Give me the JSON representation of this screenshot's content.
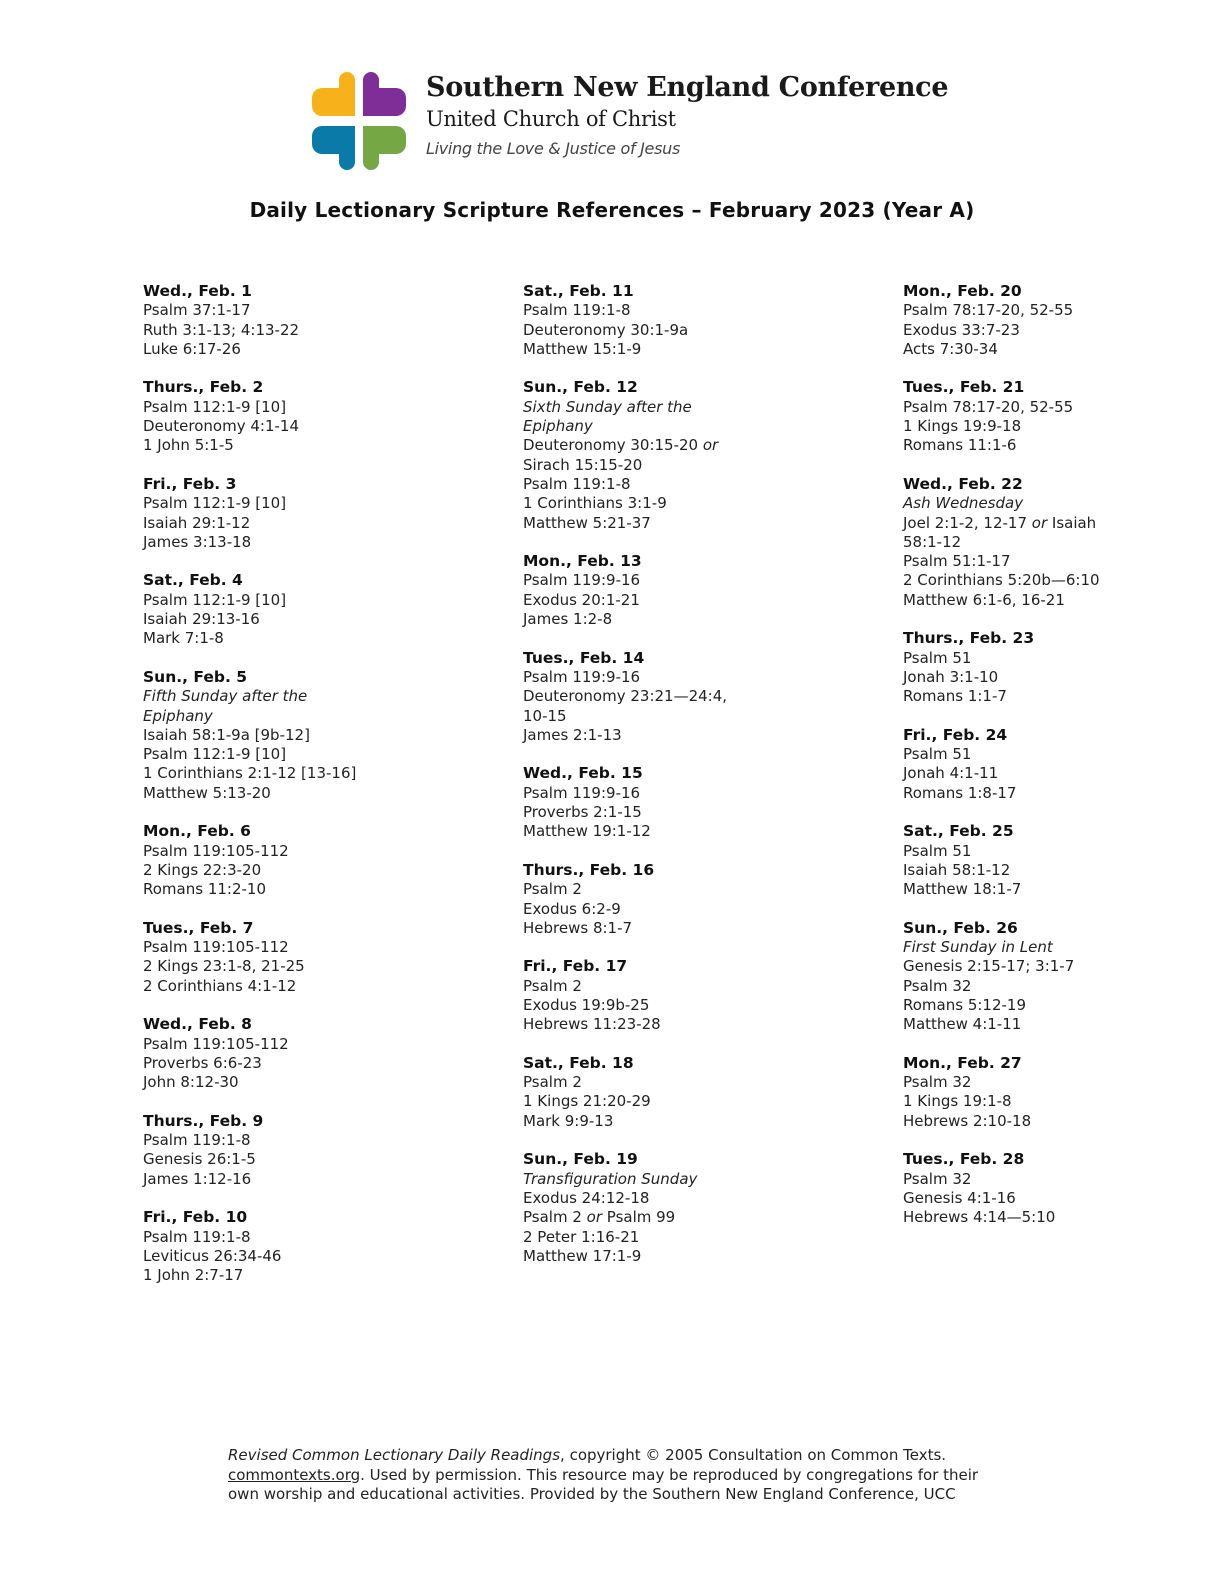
{
  "logo": {
    "colors": {
      "yellow": "#F7B21B",
      "purple": "#7E2E96",
      "blue": "#0A7BA8",
      "green": "#76A745"
    }
  },
  "header": {
    "org_name": "Southern New England Conference",
    "org_sub": "United Church of Christ",
    "tagline": "Living the Love & Justice of Jesus"
  },
  "title": "Daily Lectionary Scripture References – February 2023 (Year A)",
  "columns": [
    {
      "entries": [
        {
          "date": "Wed., Feb. 1",
          "lines": [
            [
              {
                "t": "Psalm 37:1-17"
              }
            ],
            [
              {
                "t": "Ruth 3:1-13; 4:13-22"
              }
            ],
            [
              {
                "t": "Luke 6:17-26"
              }
            ]
          ]
        },
        {
          "date": "Thurs., Feb. 2",
          "lines": [
            [
              {
                "t": "Psalm 112:1-9 [10]"
              }
            ],
            [
              {
                "t": "Deuteronomy 4:1-14"
              }
            ],
            [
              {
                "t": "1 John 5:1-5"
              }
            ]
          ]
        },
        {
          "date": "Fri., Feb. 3",
          "lines": [
            [
              {
                "t": "Psalm 112:1-9 [10]"
              }
            ],
            [
              {
                "t": "Isaiah 29:1-12"
              }
            ],
            [
              {
                "t": "James 3:13-18"
              }
            ]
          ]
        },
        {
          "date": "Sat., Feb. 4",
          "lines": [
            [
              {
                "t": "Psalm 112:1-9 [10]"
              }
            ],
            [
              {
                "t": "Isaiah 29:13-16"
              }
            ],
            [
              {
                "t": "Mark 7:1-8"
              }
            ]
          ]
        },
        {
          "date": "Sun., Feb. 5",
          "lines": [
            [
              {
                "t": "Fifth Sunday after the",
                "i": true
              }
            ],
            [
              {
                "t": "Epiphany",
                "i": true
              }
            ],
            [
              {
                "t": "Isaiah 58:1-9a [9b-12]"
              }
            ],
            [
              {
                "t": "Psalm 112:1-9 [10]"
              }
            ],
            [
              {
                "t": "1 Corinthians 2:1-12 [13-16]"
              }
            ],
            [
              {
                "t": "Matthew 5:13-20"
              }
            ]
          ]
        },
        {
          "date": "Mon., Feb. 6",
          "lines": [
            [
              {
                "t": "Psalm 119:105-112"
              }
            ],
            [
              {
                "t": "2 Kings 22:3-20"
              }
            ],
            [
              {
                "t": "Romans 11:2-10"
              }
            ]
          ]
        },
        {
          "date": "Tues., Feb. 7",
          "lines": [
            [
              {
                "t": "Psalm 119:105-112"
              }
            ],
            [
              {
                "t": "2 Kings 23:1-8, 21-25"
              }
            ],
            [
              {
                "t": "2 Corinthians 4:1-12"
              }
            ]
          ]
        },
        {
          "date": "Wed., Feb. 8",
          "lines": [
            [
              {
                "t": "Psalm 119:105-112"
              }
            ],
            [
              {
                "t": "Proverbs 6:6-23"
              }
            ],
            [
              {
                "t": "John 8:12-30"
              }
            ]
          ]
        },
        {
          "date": "Thurs., Feb. 9",
          "lines": [
            [
              {
                "t": "Psalm 119:1-8"
              }
            ],
            [
              {
                "t": "Genesis 26:1-5"
              }
            ],
            [
              {
                "t": "James 1:12-16"
              }
            ]
          ]
        },
        {
          "date": "Fri., Feb. 10",
          "lines": [
            [
              {
                "t": "Psalm 119:1-8"
              }
            ],
            [
              {
                "t": "Leviticus 26:34-46"
              }
            ],
            [
              {
                "t": "1 John 2:7-17"
              }
            ]
          ]
        }
      ]
    },
    {
      "entries": [
        {
          "date": "Sat., Feb. 11",
          "lines": [
            [
              {
                "t": "Psalm 119:1-8"
              }
            ],
            [
              {
                "t": "Deuteronomy 30:1-9a"
              }
            ],
            [
              {
                "t": "Matthew 15:1-9"
              }
            ]
          ]
        },
        {
          "date": "Sun., Feb. 12",
          "lines": [
            [
              {
                "t": "Sixth Sunday after the",
                "i": true
              }
            ],
            [
              {
                "t": "Epiphany",
                "i": true
              }
            ],
            [
              {
                "t": "Deuteronomy 30:15-20 "
              },
              {
                "t": "or",
                "i": true
              }
            ],
            [
              {
                "t": "Sirach 15:15-20"
              }
            ],
            [
              {
                "t": "Psalm 119:1-8"
              }
            ],
            [
              {
                "t": "1 Corinthians 3:1-9"
              }
            ],
            [
              {
                "t": "Matthew 5:21-37"
              }
            ]
          ]
        },
        {
          "date": "Mon., Feb. 13",
          "lines": [
            [
              {
                "t": "Psalm 119:9-16"
              }
            ],
            [
              {
                "t": "Exodus 20:1-21"
              }
            ],
            [
              {
                "t": "James 1:2-8"
              }
            ]
          ]
        },
        {
          "date": "Tues., Feb. 14",
          "lines": [
            [
              {
                "t": "Psalm 119:9-16"
              }
            ],
            [
              {
                "t": "Deuteronomy 23:21—24:4,"
              }
            ],
            [
              {
                "t": "10-15"
              }
            ],
            [
              {
                "t": "James 2:1-13"
              }
            ]
          ]
        },
        {
          "date": "Wed., Feb. 15",
          "lines": [
            [
              {
                "t": "Psalm 119:9-16"
              }
            ],
            [
              {
                "t": "Proverbs 2:1-15"
              }
            ],
            [
              {
                "t": "Matthew 19:1-12"
              }
            ]
          ]
        },
        {
          "date": "Thurs., Feb. 16",
          "lines": [
            [
              {
                "t": "Psalm 2"
              }
            ],
            [
              {
                "t": "Exodus 6:2-9"
              }
            ],
            [
              {
                "t": "Hebrews 8:1-7"
              }
            ]
          ]
        },
        {
          "date": "Fri., Feb. 17",
          "lines": [
            [
              {
                "t": "Psalm 2"
              }
            ],
            [
              {
                "t": "Exodus 19:9b-25"
              }
            ],
            [
              {
                "t": "Hebrews 11:23-28"
              }
            ]
          ]
        },
        {
          "date": "Sat., Feb. 18",
          "lines": [
            [
              {
                "t": "Psalm 2"
              }
            ],
            [
              {
                "t": "1 Kings 21:20-29"
              }
            ],
            [
              {
                "t": "Mark 9:9-13"
              }
            ]
          ]
        },
        {
          "date": "Sun., Feb. 19",
          "lines": [
            [
              {
                "t": "Transfiguration Sunday",
                "i": true
              }
            ],
            [
              {
                "t": "Exodus 24:12-18"
              }
            ],
            [
              {
                "t": "Psalm 2 "
              },
              {
                "t": "or",
                "i": true
              },
              {
                "t": " Psalm 99"
              }
            ],
            [
              {
                "t": "2 Peter 1:16-21"
              }
            ],
            [
              {
                "t": "Matthew 17:1-9"
              }
            ]
          ]
        }
      ]
    },
    {
      "entries": [
        {
          "date": "Mon., Feb. 20",
          "lines": [
            [
              {
                "t": "Psalm 78:17-20, 52-55"
              }
            ],
            [
              {
                "t": "Exodus 33:7-23"
              }
            ],
            [
              {
                "t": "Acts 7:30-34"
              }
            ]
          ]
        },
        {
          "date": "Tues., Feb. 21",
          "lines": [
            [
              {
                "t": "Psalm 78:17-20, 52-55"
              }
            ],
            [
              {
                "t": "1 Kings 19:9-18"
              }
            ],
            [
              {
                "t": "Romans 11:1-6"
              }
            ]
          ]
        },
        {
          "date": "Wed., Feb. 22",
          "lines": [
            [
              {
                "t": "Ash Wednesday",
                "i": true
              }
            ],
            [
              {
                "t": "Joel 2:1-2, 12-17 "
              },
              {
                "t": "or",
                "i": true
              },
              {
                "t": " Isaiah"
              }
            ],
            [
              {
                "t": "58:1-12"
              }
            ],
            [
              {
                "t": "Psalm 51:1-17"
              }
            ],
            [
              {
                "t": "2 Corinthians 5:20b—6:10"
              }
            ],
            [
              {
                "t": "Matthew 6:1-6, 16-21"
              }
            ]
          ]
        },
        {
          "date": "Thurs., Feb. 23",
          "lines": [
            [
              {
                "t": "Psalm 51"
              }
            ],
            [
              {
                "t": "Jonah 3:1-10"
              }
            ],
            [
              {
                "t": "Romans 1:1-7"
              }
            ]
          ]
        },
        {
          "date": "Fri., Feb. 24",
          "lines": [
            [
              {
                "t": "Psalm 51"
              }
            ],
            [
              {
                "t": "Jonah 4:1-11"
              }
            ],
            [
              {
                "t": "Romans 1:8-17"
              }
            ]
          ]
        },
        {
          "date": "Sat., Feb. 25",
          "lines": [
            [
              {
                "t": "Psalm 51"
              }
            ],
            [
              {
                "t": "Isaiah 58:1-12"
              }
            ],
            [
              {
                "t": "Matthew 18:1-7"
              }
            ]
          ]
        },
        {
          "date": "Sun., Feb. 26",
          "lines": [
            [
              {
                "t": "First Sunday in Lent",
                "i": true
              }
            ],
            [
              {
                "t": "Genesis 2:15-17; 3:1-7"
              }
            ],
            [
              {
                "t": "Psalm 32"
              }
            ],
            [
              {
                "t": "Romans 5:12-19"
              }
            ],
            [
              {
                "t": "Matthew 4:1-11"
              }
            ]
          ]
        },
        {
          "date": "Mon., Feb. 27",
          "lines": [
            [
              {
                "t": "Psalm 32"
              }
            ],
            [
              {
                "t": "1 Kings 19:1-8"
              }
            ],
            [
              {
                "t": "Hebrews 2:10-18"
              }
            ]
          ]
        },
        {
          "date": "Tues., Feb. 28",
          "lines": [
            [
              {
                "t": "Psalm 32"
              }
            ],
            [
              {
                "t": "Genesis 4:1-16"
              }
            ],
            [
              {
                "t": "Hebrews 4:14—5:10"
              }
            ]
          ]
        }
      ]
    }
  ],
  "footer": {
    "source_title": "Revised Common Lectionary Daily Readings",
    "copyright": ", copyright © 2005 Consultation on Common Texts.",
    "link": "commontexts.org",
    "line2_rest": ". Used by permission. This resource may be reproduced by congregations for their",
    "line3": "own worship and educational activities. Provided by the Southern New England Conference, UCC"
  }
}
